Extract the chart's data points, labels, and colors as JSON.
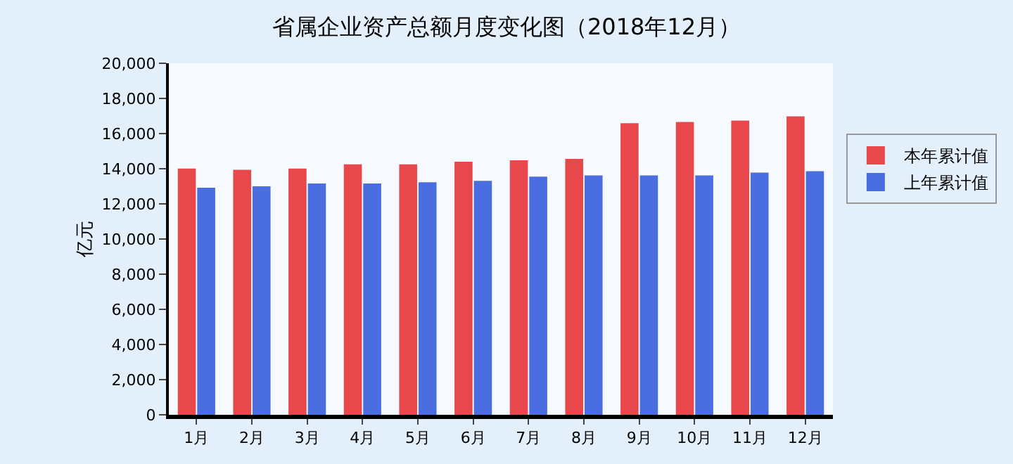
{
  "chart_data": {
    "type": "bar",
    "title": "省属企业资产总额月度变化图（2018年12月）",
    "ylabel": "亿元",
    "categories": [
      "1月",
      "2月",
      "3月",
      "4月",
      "5月",
      "6月",
      "7月",
      "8月",
      "9月",
      "10月",
      "11月",
      "12月"
    ],
    "series": [
      {
        "name": "本年累计值",
        "color": "#e8484c",
        "values": [
          13970,
          13900,
          13970,
          14210,
          14210,
          14360,
          14440,
          14520,
          16550,
          16620,
          16700,
          16940
        ]
      },
      {
        "name": "上年累计值",
        "color": "#4a6ee0",
        "values": [
          12880,
          12960,
          13120,
          13120,
          13190,
          13270,
          13510,
          13580,
          13580,
          13580,
          13740,
          13820
        ]
      }
    ],
    "ylim": [
      0,
      20000
    ],
    "yticks": [
      {
        "value": 0,
        "label": "0"
      },
      {
        "value": 2000,
        "label": "2,000"
      },
      {
        "value": 4000,
        "label": "4,000"
      },
      {
        "value": 6000,
        "label": "6,000"
      },
      {
        "value": 8000,
        "label": "8,000"
      },
      {
        "value": 10000,
        "label": "10,000"
      },
      {
        "value": 12000,
        "label": "12,000"
      },
      {
        "value": 14000,
        "label": "14,000"
      },
      {
        "value": 16000,
        "label": "16,000"
      },
      {
        "value": 18000,
        "label": "18,000"
      },
      {
        "value": 20000,
        "label": "20,000"
      }
    ],
    "grid": false,
    "legend": "right"
  }
}
